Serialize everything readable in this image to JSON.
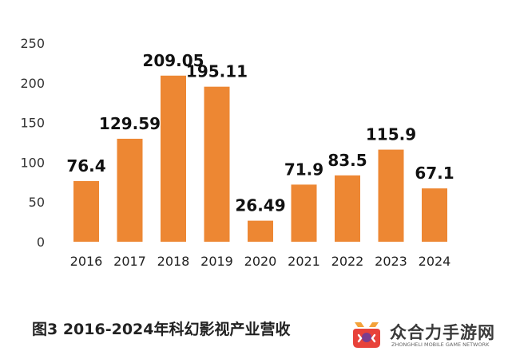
{
  "chart_data": {
    "type": "bar",
    "categories": [
      "2016",
      "2017",
      "2018",
      "2019",
      "2020",
      "2021",
      "2022",
      "2023",
      "2024"
    ],
    "values": [
      76.4,
      129.59,
      209.05,
      195.11,
      26.49,
      71.9,
      83.5,
      115.9,
      67.1
    ],
    "data_labels": [
      "76.4",
      "129.59",
      "209.05",
      "195.11",
      "26.49",
      "71.9",
      "83.5",
      "115.9",
      "67.1"
    ],
    "yticks": [
      "0",
      "50",
      "100",
      "150",
      "200",
      "250"
    ],
    "ylim": [
      0,
      250
    ],
    "grid": false,
    "legend": "none",
    "bar_color": "#ED8733",
    "title": "",
    "xlabel": "",
    "ylabel": ""
  },
  "caption": "图3  2016-2024年科幻影视产业营收",
  "watermark": {
    "name": "众合力手游网",
    "subtitle": "ZHONGHELI MOBILE GAME NETWORK",
    "icon": "game-controller-logo-icon",
    "colors": {
      "red": "#E8423A",
      "orange": "#F4A23A",
      "purple": "#7B3C8E"
    }
  }
}
